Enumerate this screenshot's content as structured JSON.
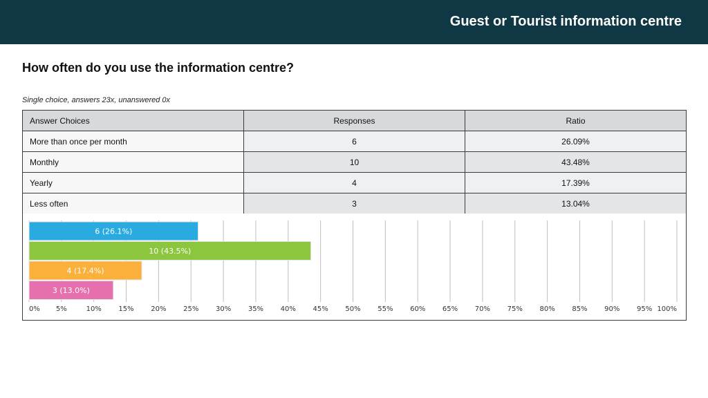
{
  "header": {
    "title": "Guest or Tourist information centre"
  },
  "question": {
    "title": "How often do you use the information centre?"
  },
  "meta": {
    "text": "Single choice, answers 23x, unanswered 0x"
  },
  "table": {
    "headers": [
      "Answer Choices",
      "Responses",
      "Ratio"
    ],
    "rows": [
      {
        "choice": "More than once per month",
        "responses": "6",
        "ratio": "26.09%"
      },
      {
        "choice": "Monthly",
        "responses": "10",
        "ratio": "43.48%"
      },
      {
        "choice": "Yearly",
        "responses": "4",
        "ratio": "17.39%"
      },
      {
        "choice": "Less often",
        "responses": "3",
        "ratio": "13.04%"
      }
    ]
  },
  "chart_data": {
    "type": "bar",
    "orientation": "horizontal",
    "categories": [
      "More than once per month",
      "Monthly",
      "Yearly",
      "Less often"
    ],
    "values": [
      26.1,
      43.5,
      17.4,
      13.0
    ],
    "data_labels": [
      "6 (26.1%)",
      "10 (43.5%)",
      "4 (17.4%)",
      "3 (13.0%)"
    ],
    "colors": [
      "#29abe2",
      "#8cc63f",
      "#fbb03b",
      "#e66fae"
    ],
    "xlim": [
      0,
      100
    ],
    "xticks": [
      "0%",
      "5%",
      "10%",
      "15%",
      "20%",
      "25%",
      "30%",
      "35%",
      "40%",
      "45%",
      "50%",
      "55%",
      "60%",
      "65%",
      "70%",
      "75%",
      "80%",
      "85%",
      "90%",
      "95%",
      "100%"
    ],
    "grid": true,
    "legend": "none"
  }
}
